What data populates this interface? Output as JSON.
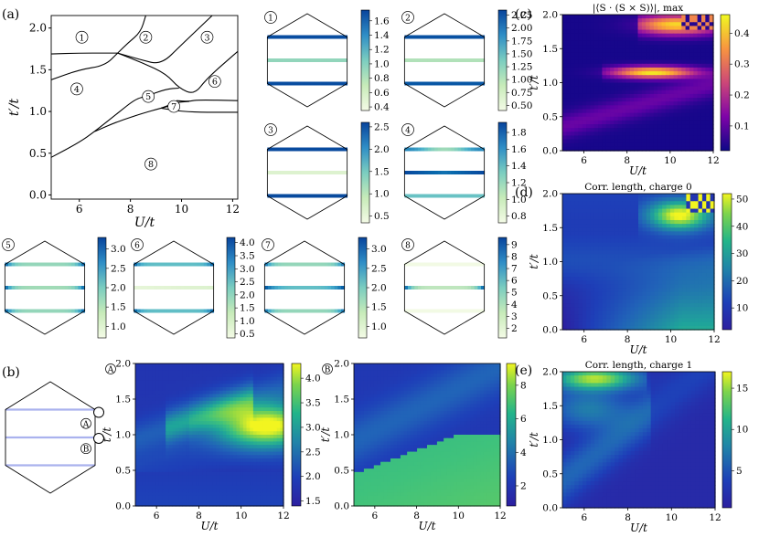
{
  "panel_labels": {
    "a": "(a)",
    "b": "(b)",
    "c": "(c)",
    "d": "(d)",
    "e": "(e)"
  },
  "chart_data": [
    {
      "id": "phase-diagram",
      "type": "line",
      "xlabel": "U/t",
      "ylabel": "t′/t",
      "xlim": [
        4.9,
        12.2
      ],
      "ylim": [
        -0.05,
        2.15
      ],
      "xticks": [
        "6",
        "8",
        "10",
        "12"
      ],
      "yticks": [
        "0.0",
        "0.5",
        "1.0",
        "1.5",
        "2.0"
      ],
      "boundaries": [
        [
          [
            4.9,
            1.69
          ],
          [
            6.0,
            1.7
          ],
          [
            7.0,
            1.7
          ],
          [
            7.5,
            1.7
          ]
        ],
        [
          [
            7.5,
            1.7
          ],
          [
            7.9,
            1.82
          ],
          [
            8.4,
            1.95
          ],
          [
            8.6,
            2.15
          ]
        ],
        [
          [
            7.5,
            1.7
          ],
          [
            8.4,
            1.62
          ],
          [
            9.2,
            1.56
          ],
          [
            10.0,
            1.8
          ],
          [
            11.2,
            2.15
          ]
        ],
        [
          [
            7.5,
            1.7
          ],
          [
            8.5,
            1.58
          ],
          [
            9.4,
            1.45
          ],
          [
            9.9,
            1.28
          ],
          [
            10.5,
            1.2
          ],
          [
            11.0,
            1.4
          ],
          [
            12.2,
            1.72
          ]
        ],
        [
          [
            4.9,
            1.38
          ],
          [
            6.0,
            1.5
          ],
          [
            7.0,
            1.55
          ],
          [
            7.5,
            1.7
          ]
        ],
        [
          [
            4.9,
            0.45
          ],
          [
            6.0,
            0.63
          ],
          [
            6.6,
            0.76
          ],
          [
            7.5,
            0.98
          ],
          [
            8.2,
            1.15
          ],
          [
            8.6,
            1.18
          ],
          [
            9.4,
            1.27
          ],
          [
            9.9,
            1.28
          ]
        ],
        [
          [
            6.6,
            0.76
          ],
          [
            7.5,
            0.88
          ],
          [
            8.5,
            0.98
          ],
          [
            9.2,
            1.04
          ],
          [
            9.7,
            1.08
          ]
        ],
        [
          [
            9.2,
            1.04
          ],
          [
            9.8,
            1.11
          ],
          [
            10.3,
            1.12
          ]
        ],
        [
          [
            9.2,
            1.04
          ],
          [
            10.0,
            1.0
          ],
          [
            11.0,
            0.99
          ],
          [
            12.2,
            0.99
          ]
        ],
        [
          [
            9.8,
            1.13
          ],
          [
            10.3,
            1.12
          ],
          [
            10.6,
            1.14
          ],
          [
            12.2,
            1.13
          ]
        ]
      ],
      "region_labels": [
        {
          "label": "1",
          "x": 6.1,
          "y": 1.89
        },
        {
          "label": "2",
          "x": 8.6,
          "y": 1.89
        },
        {
          "label": "3",
          "x": 11.0,
          "y": 1.89
        },
        {
          "label": "4",
          "x": 5.9,
          "y": 1.27
        },
        {
          "label": "5",
          "x": 8.7,
          "y": 1.18
        },
        {
          "label": "6",
          "x": 11.3,
          "y": 1.36
        },
        {
          "label": "7",
          "x": 9.7,
          "y": 1.06
        },
        {
          "label": "8",
          "x": 8.8,
          "y": 0.37
        }
      ]
    },
    {
      "id": "lattice-insets",
      "type": "heatmap",
      "insets": [
        {
          "label": "1",
          "cb_ticks": [
            "1.6",
            "1.4",
            "1.2",
            "1.0",
            "0.8",
            "0.6",
            "0.4"
          ],
          "cb_range": [
            0.35,
            1.75
          ]
        },
        {
          "label": "2",
          "cb_ticks": [
            "2.25",
            "2.00",
            "1.75",
            "1.50",
            "1.25",
            "1.00",
            "0.75",
            "0.50"
          ],
          "cb_range": [
            0.4,
            2.35
          ]
        },
        {
          "label": "3",
          "cb_ticks": [
            "2.5",
            "2.0",
            "1.5",
            "1.0",
            "0.5"
          ],
          "cb_range": [
            0.35,
            2.6
          ]
        },
        {
          "label": "4",
          "cb_ticks": [
            "1.8",
            "1.6",
            "1.4",
            "1.2",
            "1.0",
            "0.8"
          ],
          "cb_range": [
            0.72,
            1.92
          ]
        },
        {
          "label": "5",
          "cb_ticks": [
            "3.0",
            "2.5",
            "2.0",
            "1.5",
            "1.0"
          ],
          "cb_range": [
            0.7,
            3.3
          ]
        },
        {
          "label": "6",
          "cb_ticks": [
            "4.0",
            "3.5",
            "3.0",
            "2.5",
            "2.0",
            "1.5",
            "1.0",
            "0.5"
          ],
          "cb_range": [
            0.35,
            4.2
          ]
        },
        {
          "label": "7",
          "cb_ticks": [
            "3.0",
            "2.5",
            "2.0",
            "1.5",
            "1.0"
          ],
          "cb_range": [
            0.7,
            3.3
          ]
        },
        {
          "label": "8",
          "cb_ticks": [
            "9",
            "8",
            "7",
            "6",
            "5",
            "4",
            "3",
            "2"
          ],
          "cb_range": [
            1.2,
            9.6
          ]
        }
      ]
    },
    {
      "id": "schematic",
      "type": "other",
      "markers": [
        "A",
        "B"
      ]
    },
    {
      "id": "map-A",
      "type": "heatmap",
      "label": "A",
      "xlabel": "U/t",
      "ylabel": "t′/t",
      "xlim": [
        5,
        12
      ],
      "ylim": [
        0,
        2
      ],
      "xticks": [
        "6",
        "8",
        "10",
        "12"
      ],
      "yticks": [
        "0.0",
        "0.5",
        "1.0",
        "1.5",
        "2.0"
      ],
      "cb_ticks": [
        "4.0",
        "3.5",
        "3.0",
        "2.5",
        "2.0",
        "1.5"
      ],
      "cb_range": [
        1.4,
        4.3
      ]
    },
    {
      "id": "map-B",
      "type": "heatmap",
      "label": "B",
      "xlabel": "U/t",
      "ylabel": "t′/t",
      "xlim": [
        5,
        12
      ],
      "ylim": [
        0,
        2
      ],
      "xticks": [
        "6",
        "8",
        "10",
        "12"
      ],
      "yticks": [
        "0.0",
        "0.5",
        "1.0",
        "1.5",
        "2.0"
      ],
      "cb_ticks": [
        "8",
        "6",
        "4",
        "2"
      ],
      "cb_range": [
        0.8,
        9.3
      ]
    },
    {
      "id": "map-c",
      "type": "heatmap",
      "title": "|⟨S · (S × S)⟩|, max",
      "xlabel": "U/t",
      "ylabel": "t′/t",
      "xlim": [
        5,
        12
      ],
      "ylim": [
        0,
        2
      ],
      "xticks": [
        "6",
        "8",
        "10",
        "12"
      ],
      "yticks": [
        "0.0",
        "0.5",
        "1.0",
        "1.5",
        "2.0"
      ],
      "cb_ticks": [
        "0.4",
        "0.3",
        "0.2",
        "0.1"
      ],
      "cb_range": [
        0.02,
        0.46
      ]
    },
    {
      "id": "map-d",
      "type": "heatmap",
      "title": "Corr. length, charge 0",
      "xlabel": "U/t",
      "ylabel": "t′/t",
      "xlim": [
        5,
        12
      ],
      "ylim": [
        0,
        2
      ],
      "xticks": [
        "6",
        "8",
        "10",
        "12"
      ],
      "yticks": [
        "0.0",
        "0.5",
        "1.0",
        "1.5",
        "2.0"
      ],
      "cb_ticks": [
        "50",
        "40",
        "30",
        "20",
        "10"
      ],
      "cb_range": [
        2,
        52
      ]
    },
    {
      "id": "map-e",
      "type": "heatmap",
      "title": "Corr. length, charge 1",
      "xlabel": "U/t",
      "ylabel": "t′/t",
      "xlim": [
        5,
        12
      ],
      "ylim": [
        0,
        2
      ],
      "xticks": [
        "6",
        "8",
        "10",
        "12"
      ],
      "yticks": [
        "0.0",
        "0.5",
        "1.0",
        "1.5",
        "2.0"
      ],
      "cb_ticks": [
        "15",
        "10",
        "5"
      ],
      "cb_range": [
        0.5,
        17
      ]
    }
  ]
}
